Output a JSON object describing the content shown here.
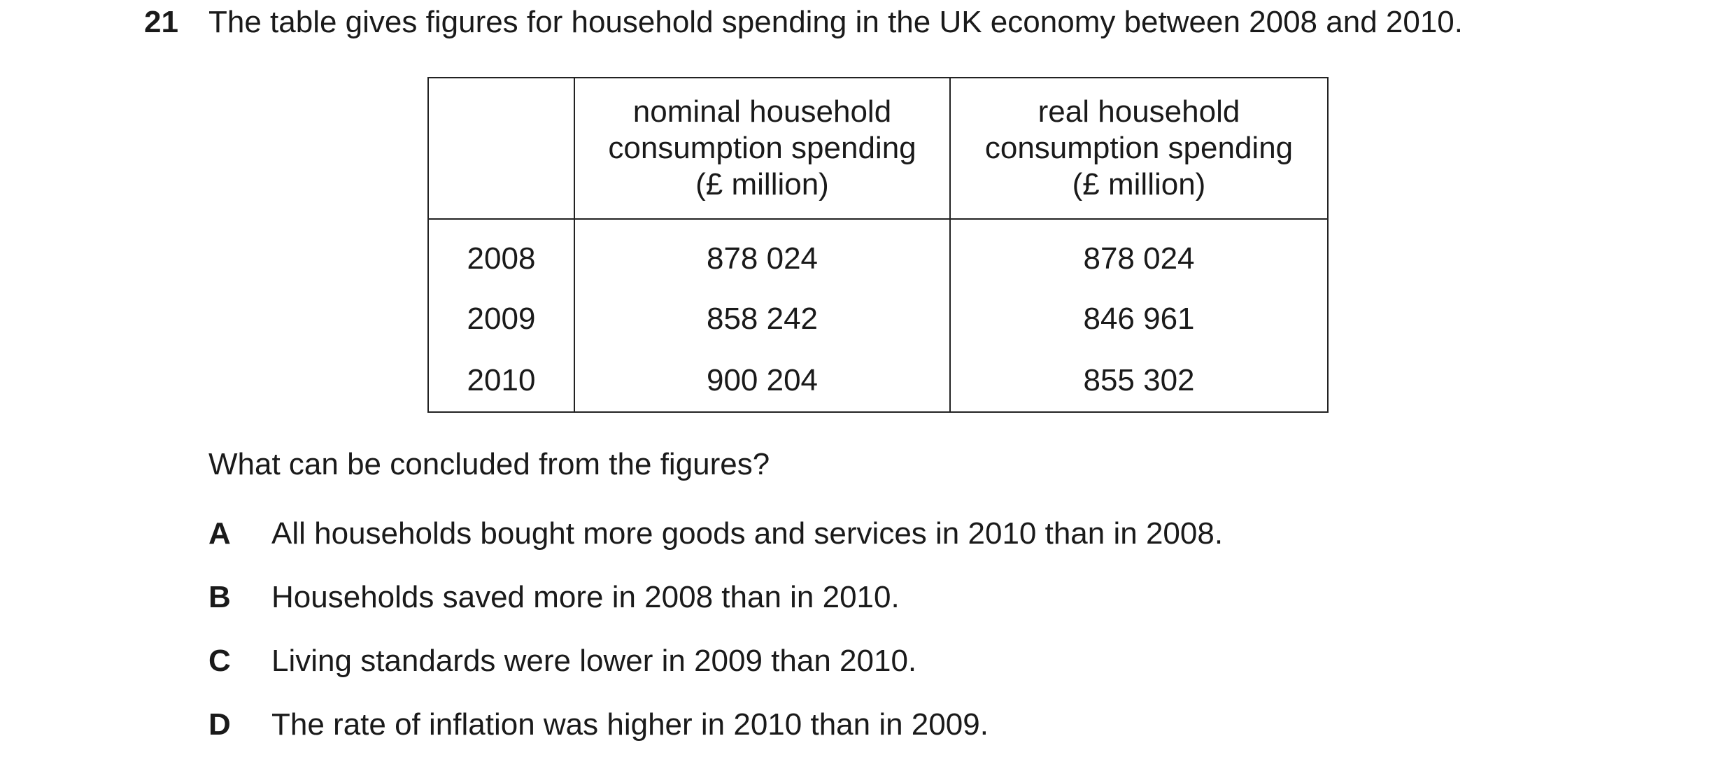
{
  "question": {
    "number": "21",
    "stem": "The table gives figures for household spending in the UK economy between 2008 and 2010.",
    "prompt": "What can be concluded from the figures?"
  },
  "table": {
    "headers": {
      "year": "",
      "nominal_line1": "nominal household",
      "nominal_line2": "consumption spending",
      "nominal_line3": "(£ million)",
      "real_line1": "real household",
      "real_line2": "consumption spending",
      "real_line3": "(£ million)"
    },
    "rows": [
      {
        "year": "2008",
        "nominal": "878 024",
        "real": "878 024"
      },
      {
        "year": "2009",
        "nominal": "858 242",
        "real": "846 961"
      },
      {
        "year": "2010",
        "nominal": "900 204",
        "real": "855 302"
      }
    ]
  },
  "options": [
    {
      "letter": "A",
      "text": "All households bought more goods and services in 2010 than in 2008."
    },
    {
      "letter": "B",
      "text": "Households saved more in 2008 than in 2010."
    },
    {
      "letter": "C",
      "text": "Living standards were lower in 2009 than 2010."
    },
    {
      "letter": "D",
      "text": "The rate of inflation was higher in 2010 than in 2009."
    }
  ]
}
